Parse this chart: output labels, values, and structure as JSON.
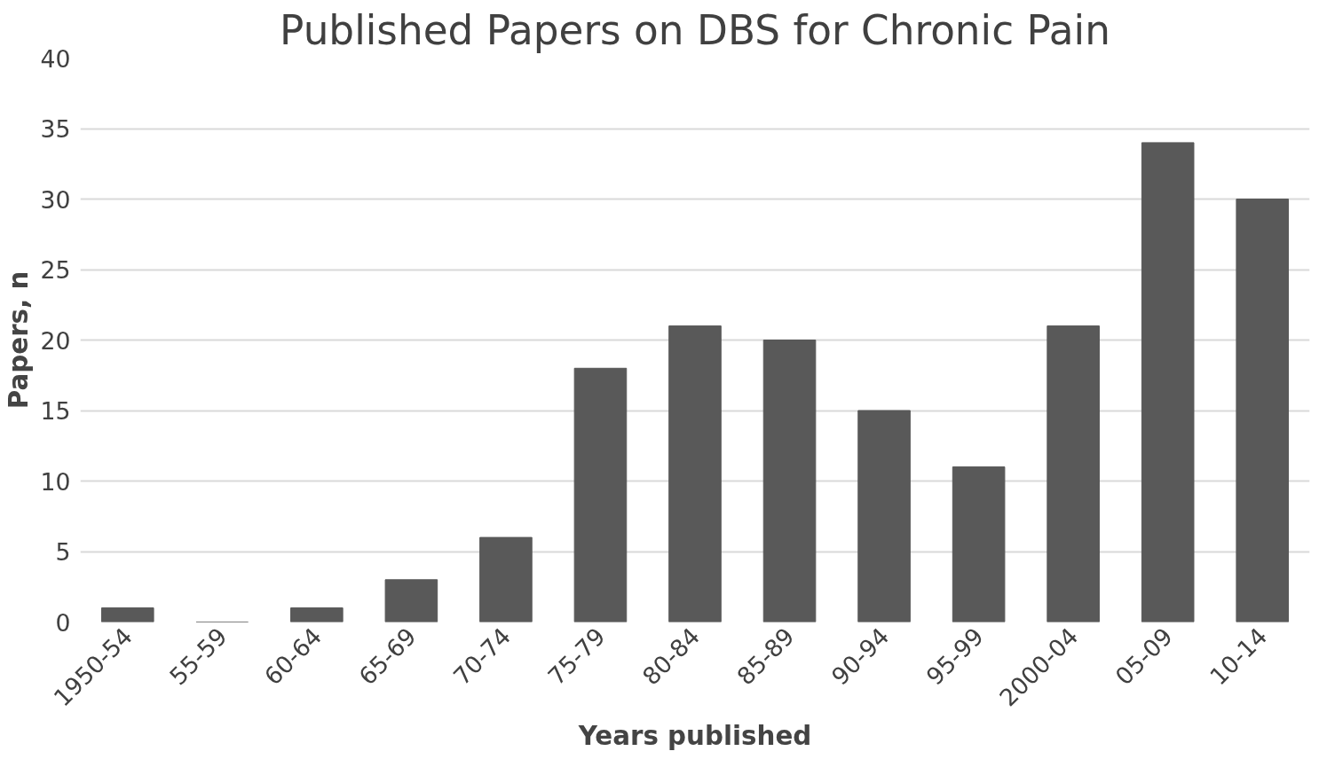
{
  "chart_data": {
    "type": "bar",
    "title": "Published Papers on DBS for Chronic Pain",
    "xlabel": "Years published",
    "ylabel": "Papers, n",
    "categories": [
      "1950-54",
      "55-59",
      "60-64",
      "65-69",
      "70-74",
      "75-79",
      "80-84",
      "85-89",
      "90-94",
      "95-99",
      "2000-04",
      "05-09",
      "10-14"
    ],
    "values": [
      1,
      0,
      1,
      3,
      6,
      18,
      21,
      20,
      15,
      11,
      21,
      34,
      30
    ],
    "color": "#595959",
    "ylim": [
      0,
      40
    ],
    "yticks": [
      0,
      5,
      10,
      15,
      20,
      25,
      30,
      35,
      40
    ],
    "grid": "y"
  }
}
